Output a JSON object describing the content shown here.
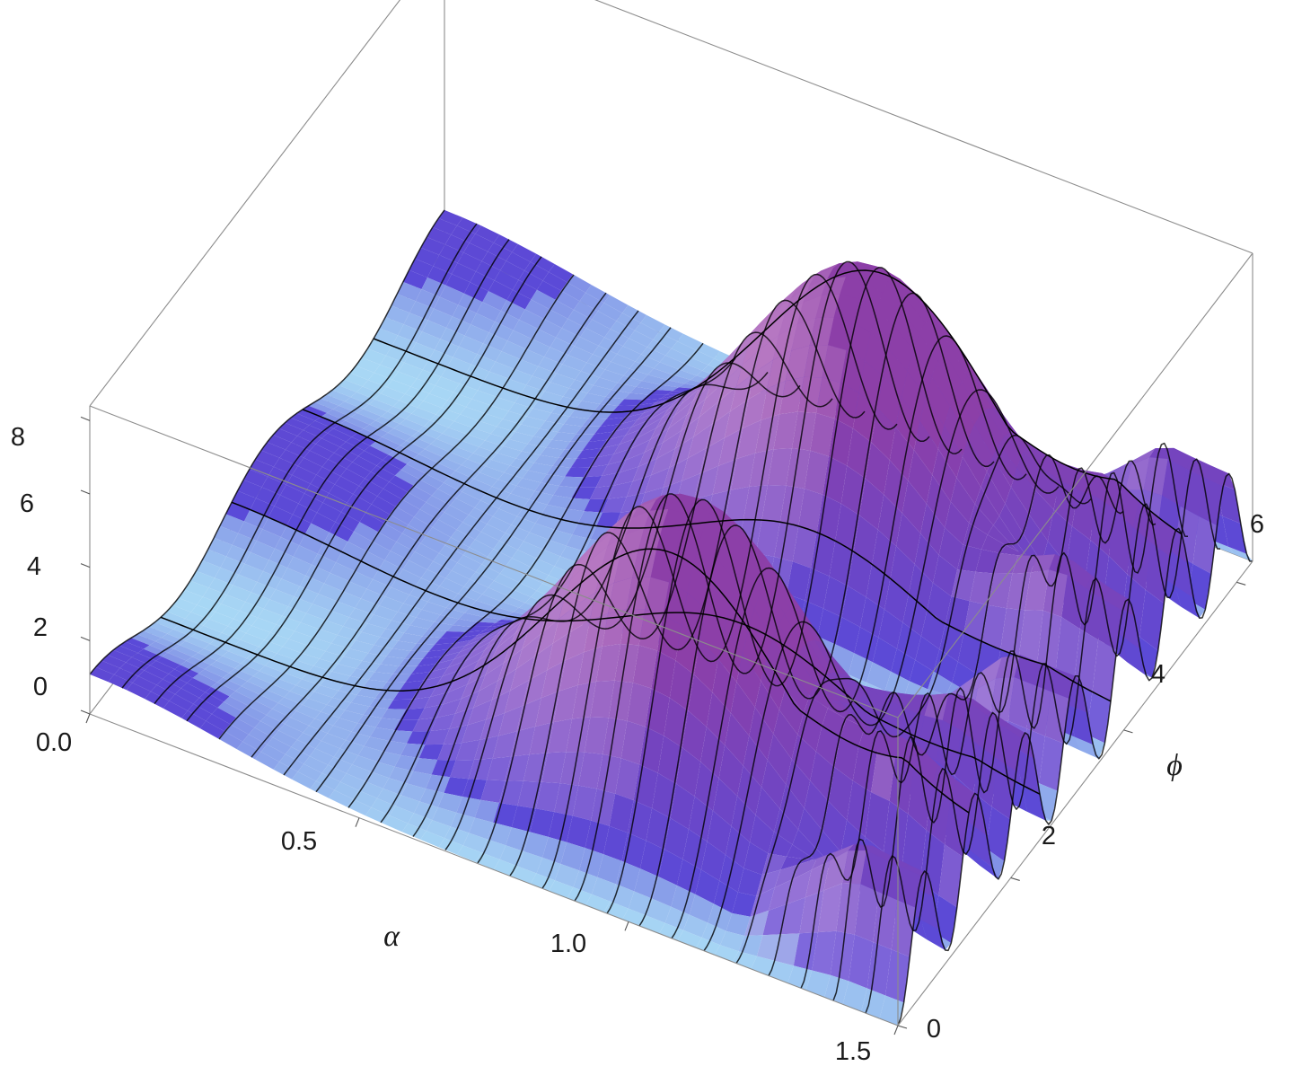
{
  "chart_data": {
    "type": "surface3d",
    "title": "",
    "axes": {
      "x": {
        "label": "α",
        "range": [
          0,
          1.5
        ],
        "ticks": [
          "0.0",
          "0.5",
          "1.0",
          "1.5"
        ],
        "tick_values": [
          0,
          0.5,
          1.0,
          1.5
        ]
      },
      "y": {
        "label": "ϕ",
        "range": [
          0,
          6.2832
        ],
        "ticks": [
          "0",
          "2",
          "4",
          "6"
        ],
        "tick_values": [
          0,
          2,
          4,
          6
        ]
      },
      "z": {
        "label": "",
        "range": [
          0,
          8.4
        ],
        "ticks": [
          "0",
          "2",
          "4",
          "6",
          "8"
        ],
        "tick_values": [
          0,
          2,
          4,
          6,
          8
        ]
      }
    },
    "grid": false,
    "boxed": true,
    "colors": {
      "low": "#a8d8f5",
      "mid": "#5a4ad8",
      "high": "#8c3fa8",
      "highlight": "#f6cde9"
    },
    "surface_description_values": {
      "peak_height": 8.0,
      "peak_phi_values": [
        1.5708,
        4.7124
      ],
      "ridge_center_alpha": 0.95
    }
  }
}
